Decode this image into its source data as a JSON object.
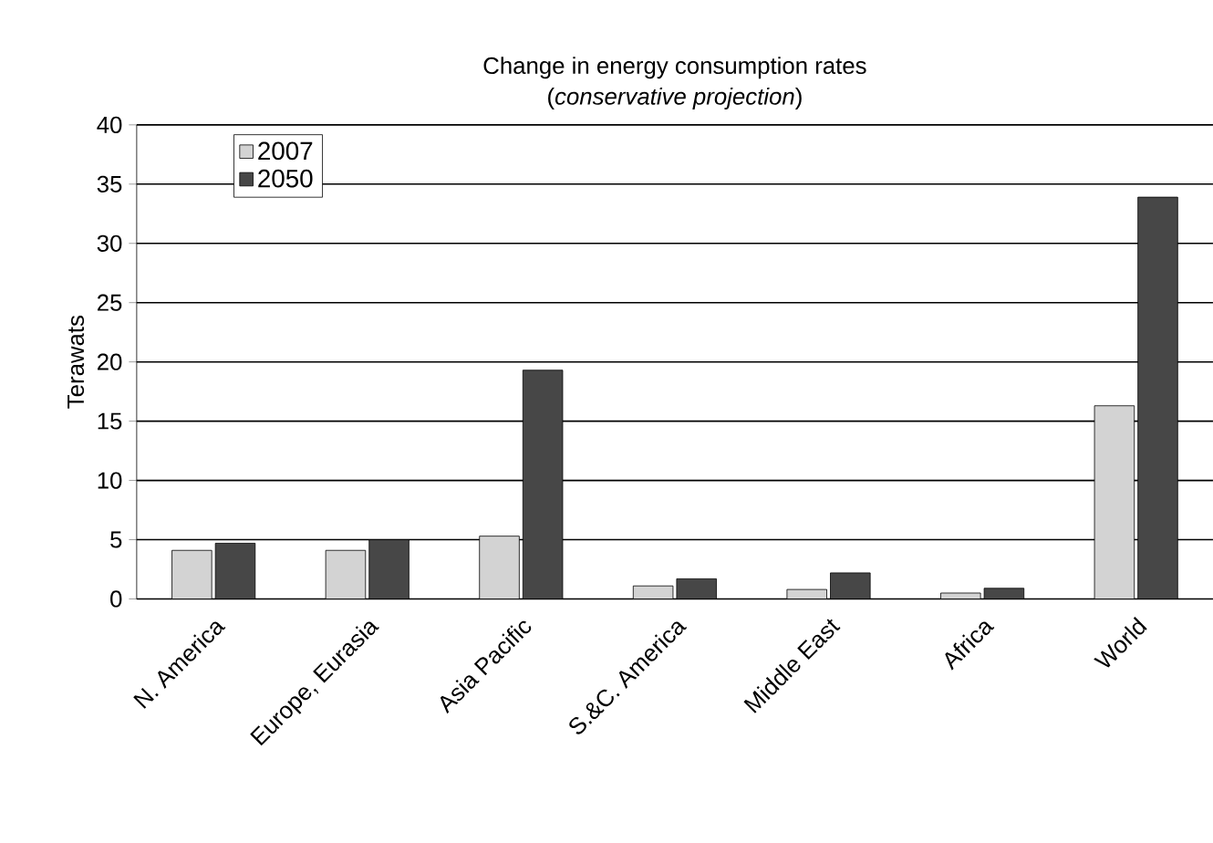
{
  "chart_data": {
    "type": "bar",
    "title": "Change in energy consumption rates",
    "subtitle": "(*conservative projection*)",
    "ylabel": "Terawats",
    "categories": [
      "N. America",
      "Europe, Eurasia",
      "Asia Pacific",
      "S.&C. America",
      "Middle East",
      "Africa",
      "World"
    ],
    "series": [
      {
        "name": "2007",
        "color": "#d3d3d3",
        "values": [
          4.1,
          4.1,
          5.3,
          1.1,
          0.8,
          0.5,
          16.3
        ]
      },
      {
        "name": "2050",
        "color": "#474747",
        "values": [
          4.7,
          5.0,
          19.3,
          1.7,
          2.2,
          0.9,
          33.9
        ]
      }
    ],
    "ylim": [
      0,
      40
    ],
    "yticks": [
      0,
      5,
      10,
      15,
      20,
      25,
      30,
      35,
      40
    ],
    "grid": "y",
    "legend": "top left"
  }
}
